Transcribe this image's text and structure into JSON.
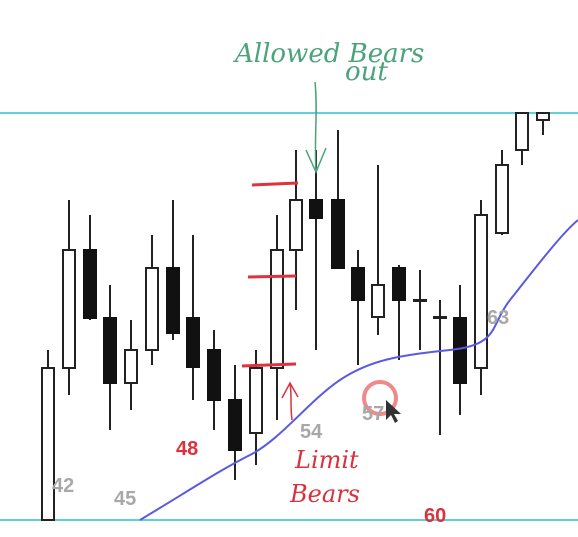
{
  "annotations": {
    "top": [
      "Allowed Bears",
      "out"
    ],
    "bottom": [
      "Limit",
      "Bears"
    ]
  },
  "bar_labels": [
    "42",
    "45",
    "48",
    "54",
    "57",
    "60",
    "63"
  ]
}
